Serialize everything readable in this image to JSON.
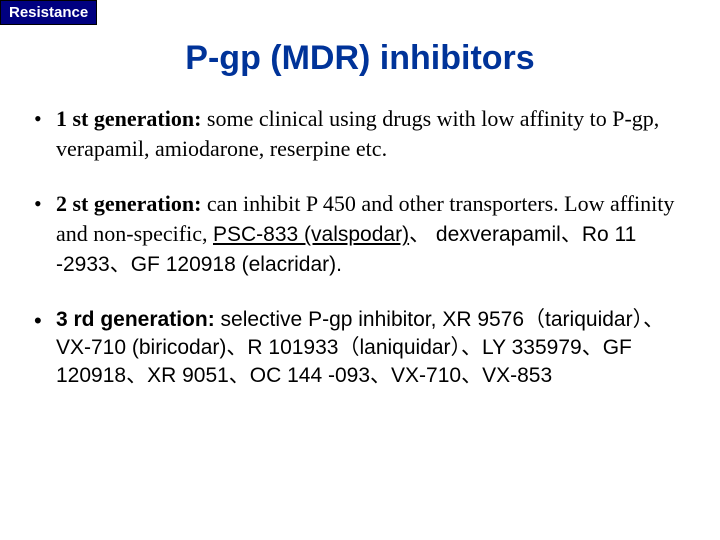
{
  "tag": "Resistance",
  "title": "P-gp (MDR) inhibitors",
  "bullets": {
    "gen1": {
      "label": "1 st generation: ",
      "text": "some clinical using drugs with low affinity to P-gp, verapamil, amiodarone, reserpine etc."
    },
    "gen2": {
      "label": "2 st generation: ",
      "text1": "can inhibit P 450 and other transporters. Low affinity and non-specific, ",
      "link": "PSC-833 (valspodar)",
      "text2": "、 dexverapamil、Ro 11 -2933、GF 120918 (elacridar)."
    },
    "gen3": {
      "label": "3 rd generation: ",
      "text": "selective P-gp inhibitor, XR 9576（tariquidar）、VX-710 (biricodar)、R 101933（laniquidar）、LY 335979、GF 120918、XR 9051、OC 144 -093、VX-710、VX-853"
    }
  },
  "colors": {
    "tag_bg": "#000080",
    "tag_text": "#ffffff",
    "title_text": "#003399",
    "body_text": "#000000",
    "background": "#ffffff"
  },
  "typography": {
    "title_fontsize": 34,
    "body_fontsize": 22,
    "tag_fontsize": 15
  }
}
